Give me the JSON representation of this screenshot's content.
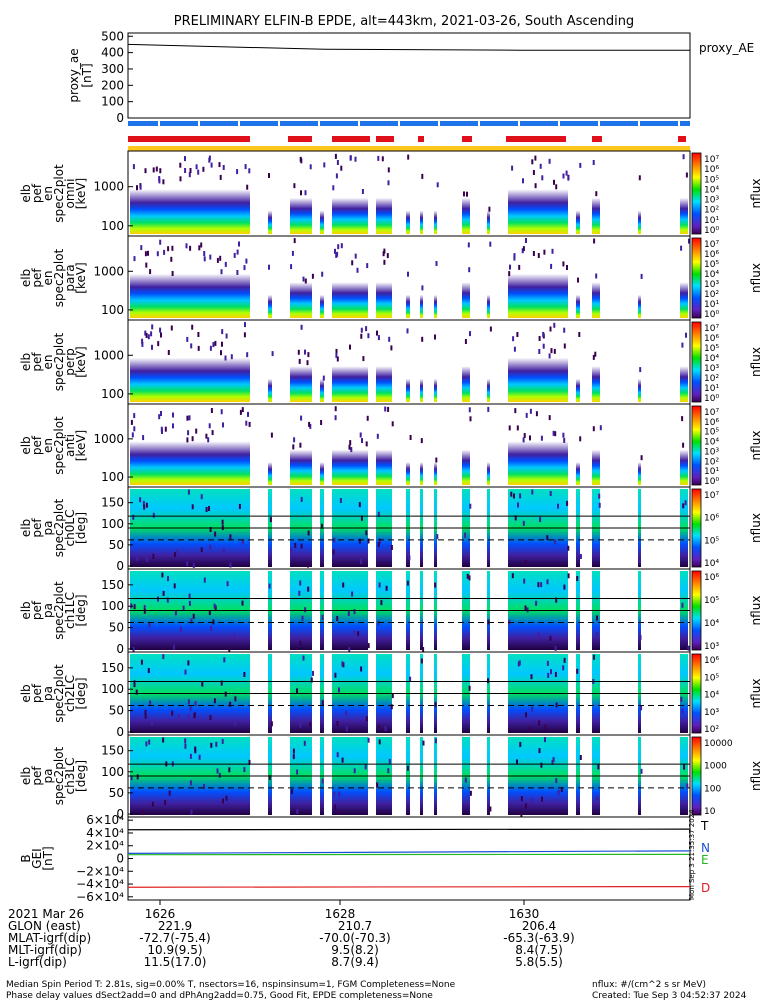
{
  "title": "PRELIMINARY ELFIN-B EPDE, alt=443km, 2021-03-26, South Ascending",
  "chart_data": [
    {
      "type": "line",
      "panel": "proxy_ae",
      "ylabel": [
        "proxy_ae",
        "[nT]"
      ],
      "legend": "proxy_AE",
      "yticks": [
        "500",
        "400",
        "300",
        "200",
        "100",
        "0"
      ],
      "ylim": [
        0,
        520
      ],
      "x": [
        0,
        0.35,
        0.7,
        1.0
      ],
      "values": [
        450,
        420,
        415,
        415
      ],
      "colors": {
        "line": "#000000"
      }
    },
    {
      "type": "heatmap",
      "panel": "elb pef en spec2plot omni",
      "ylabel": [
        "elb",
        "pef",
        "en",
        "spec2plot",
        "omni",
        "[keV]"
      ],
      "yticks": [
        "1000",
        "100"
      ],
      "scale": "log",
      "zlabel": "nflux",
      "zticks": [
        "10⁷",
        "10⁶",
        "10⁵",
        "10⁴",
        "10³",
        "10²",
        "10¹",
        "10⁰"
      ]
    },
    {
      "type": "heatmap",
      "panel": "elb pef en spec2plot para",
      "ylabel": [
        "elb",
        "pef",
        "en",
        "spec2plot",
        "para",
        "[keV]"
      ],
      "yticks": [
        "1000",
        "100"
      ],
      "scale": "log",
      "zlabel": "nflux",
      "zticks": [
        "10⁷",
        "10⁶",
        "10⁵",
        "10⁴",
        "10³",
        "10²",
        "10¹",
        "10⁰"
      ]
    },
    {
      "type": "heatmap",
      "panel": "elb pef en spec2plot perp",
      "ylabel": [
        "elb",
        "pef",
        "en",
        "spec2plot",
        "perp",
        "[keV]"
      ],
      "yticks": [
        "1000",
        "100"
      ],
      "scale": "log",
      "zlabel": "nflux",
      "zticks": [
        "10⁷",
        "10⁶",
        "10⁵",
        "10⁴",
        "10³",
        "10²",
        "10¹",
        "10⁰"
      ]
    },
    {
      "type": "heatmap",
      "panel": "elb pef en spec2plot anti",
      "ylabel": [
        "elb",
        "pef",
        "en",
        "spec2plot",
        "anti",
        "[keV]"
      ],
      "yticks": [
        "1000",
        "100"
      ],
      "scale": "log",
      "zlabel": "nflux",
      "zticks": [
        "10⁷",
        "10⁶",
        "10⁵",
        "10⁴",
        "10³",
        "10²",
        "10¹",
        "10⁰"
      ]
    },
    {
      "type": "heatmap",
      "panel": "elb pef pa spec2plot ch0LC",
      "ylabel": [
        "elb",
        "pef",
        "pa",
        "spec2plot",
        "ch0LC",
        "[deg]"
      ],
      "yticks": [
        "150",
        "100",
        "50",
        "0"
      ],
      "zlabel": "nflux",
      "zticks": [
        "10⁷",
        "10⁶",
        "10⁵",
        "10⁴"
      ]
    },
    {
      "type": "heatmap",
      "panel": "elb pef pa spec2plot ch1LC",
      "ylabel": [
        "elb",
        "pef",
        "pa",
        "spec2plot",
        "ch1LC",
        "[deg]"
      ],
      "yticks": [
        "150",
        "100",
        "50",
        "0"
      ],
      "zlabel": "nflux",
      "zticks": [
        "10⁶",
        "10⁵",
        "10⁴",
        "10³"
      ]
    },
    {
      "type": "heatmap",
      "panel": "elb pef pa spec2plot ch2LC",
      "ylabel": [
        "elb",
        "pef",
        "pa",
        "spec2plot",
        "ch2LC",
        "[deg]"
      ],
      "yticks": [
        "150",
        "100",
        "50",
        "0"
      ],
      "zlabel": "nflux",
      "zticks": [
        "10⁶",
        "10⁵",
        "10⁴",
        "10³",
        "10²"
      ]
    },
    {
      "type": "heatmap",
      "panel": "elb pef pa spec2plot ch3LC",
      "ylabel": [
        "elb",
        "pef",
        "pa",
        "spec2plot",
        "ch3LC",
        "[deg]"
      ],
      "yticks": [
        "150",
        "100",
        "50",
        "0"
      ],
      "zlabel": "nflux",
      "zticks": [
        "10000",
        "1000",
        "100",
        "10"
      ]
    },
    {
      "type": "line",
      "panel": "Bfield",
      "ylabel": [
        "B",
        "GEI",
        "[nT]"
      ],
      "yticks": [
        "6×10⁴",
        "4×10⁴",
        "2×10⁴",
        "0",
        "−2×10⁴",
        "−4×10⁴",
        "−6×10⁴"
      ],
      "ylim": [
        -65000,
        65000
      ],
      "series": [
        {
          "label": "T",
          "color": "#000000",
          "values": [
            45000,
            46000
          ]
        },
        {
          "label": "N",
          "color": "#1a4fd8",
          "values": [
            8000,
            12000
          ]
        },
        {
          "label": "E",
          "color": "#22b822",
          "values": [
            6000,
            6500
          ]
        },
        {
          "label": "D",
          "color": "#e02020",
          "values": [
            -45000,
            -44000
          ]
        }
      ],
      "side_note": "Mon Sep  3 21:35:37 2024"
    }
  ],
  "xaxis": {
    "ticks": [
      "1626",
      "1628",
      "1630"
    ],
    "rows": [
      {
        "label": "2021 Mar 26",
        "values": [
          "",
          "",
          ""
        ]
      },
      {
        "label": "GLON (east)",
        "values": [
          "221.9",
          "210.7",
          "206.4"
        ]
      },
      {
        "label": "MLAT-igrf(dip)",
        "values": [
          "-72.7(-75.4)",
          "-70.0(-70.3)",
          "-65.3(-63.9)"
        ]
      },
      {
        "label": "MLT-igrf(dip)",
        "values": [
          "10.9(9.5)",
          "9.5(8.2)",
          "8.4(7.5)"
        ]
      },
      {
        "label": "L-igrf(dip)",
        "values": [
          "11.5(17.0)",
          "8.7(9.4)",
          "5.8(5.5)"
        ]
      }
    ]
  },
  "footer": {
    "line1": "Median Spin Period T: 2.81s, sig=0.00% T, nsectors=16, nspinsinsum=1, FGM Completeness=None",
    "line2": "Phase delay values dSect2add=0 and dPhAng2add=0.75, Good Fit, EPDE completeness=None",
    "units": "nflux: #/(cm^2 s sr MeV)",
    "created": "Created: Tue Sep  3 04:52:37 2024"
  },
  "colors": {
    "bar_blue": "#1e73e8",
    "bar_red": "#e0101a",
    "bar_yellow": "#ffc81a",
    "colorbar": [
      "#ff0000",
      "#ff8000",
      "#ffff00",
      "#00e000",
      "#00e0ff",
      "#0050ff",
      "#6020c0",
      "#3a0050"
    ]
  }
}
